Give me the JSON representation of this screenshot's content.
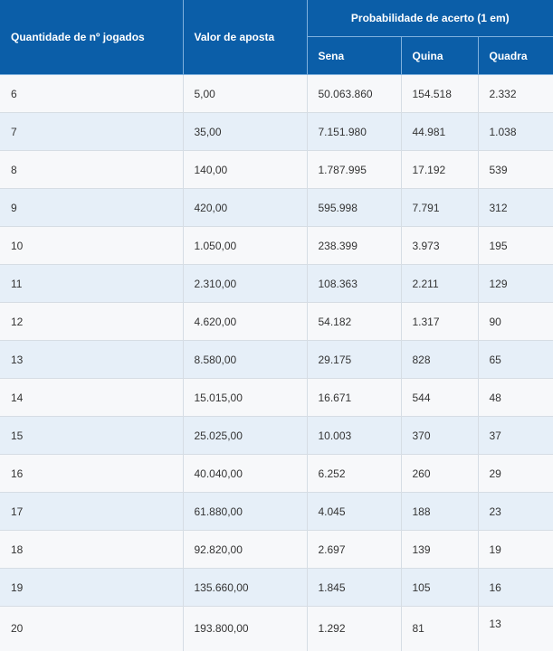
{
  "table": {
    "headers": {
      "quantity": "Quantidade de nº jogados",
      "bet_value": "Valor de aposta",
      "probability_group": "Probabilidade de acerto (1 em)",
      "sena": "Sena",
      "quina": "Quina",
      "quadra": "Quadra"
    },
    "rows": [
      [
        "6",
        "5,00",
        "50.063.860",
        "154.518",
        "2.332"
      ],
      [
        "7",
        "35,00",
        "7.151.980",
        "44.981",
        "1.038"
      ],
      [
        "8",
        "140,00",
        "1.787.995",
        "17.192",
        "539"
      ],
      [
        "9",
        "420,00",
        "595.998",
        "7.791",
        "312"
      ],
      [
        "10",
        "1.050,00",
        "238.399",
        "3.973",
        "195"
      ],
      [
        "11",
        "2.310,00",
        "108.363",
        "2.211",
        "129"
      ],
      [
        "12",
        "4.620,00",
        "54.182",
        "1.317",
        "90"
      ],
      [
        "13",
        "8.580,00",
        "29.175",
        "828",
        "65"
      ],
      [
        "14",
        "15.015,00",
        "16.671",
        "544",
        "48"
      ],
      [
        "15",
        "25.025,00",
        "10.003",
        "370",
        "37"
      ],
      [
        "16",
        "40.040,00",
        "6.252",
        "260",
        "29"
      ],
      [
        "17",
        "61.880,00",
        "4.045",
        "188",
        "23"
      ],
      [
        "18",
        "92.820,00",
        "2.697",
        "139",
        "19"
      ],
      [
        "19",
        "135.660,00",
        "1.845",
        "105",
        "16"
      ],
      [
        "20",
        "193.800,00",
        "1.292",
        "81",
        "13"
      ]
    ]
  }
}
